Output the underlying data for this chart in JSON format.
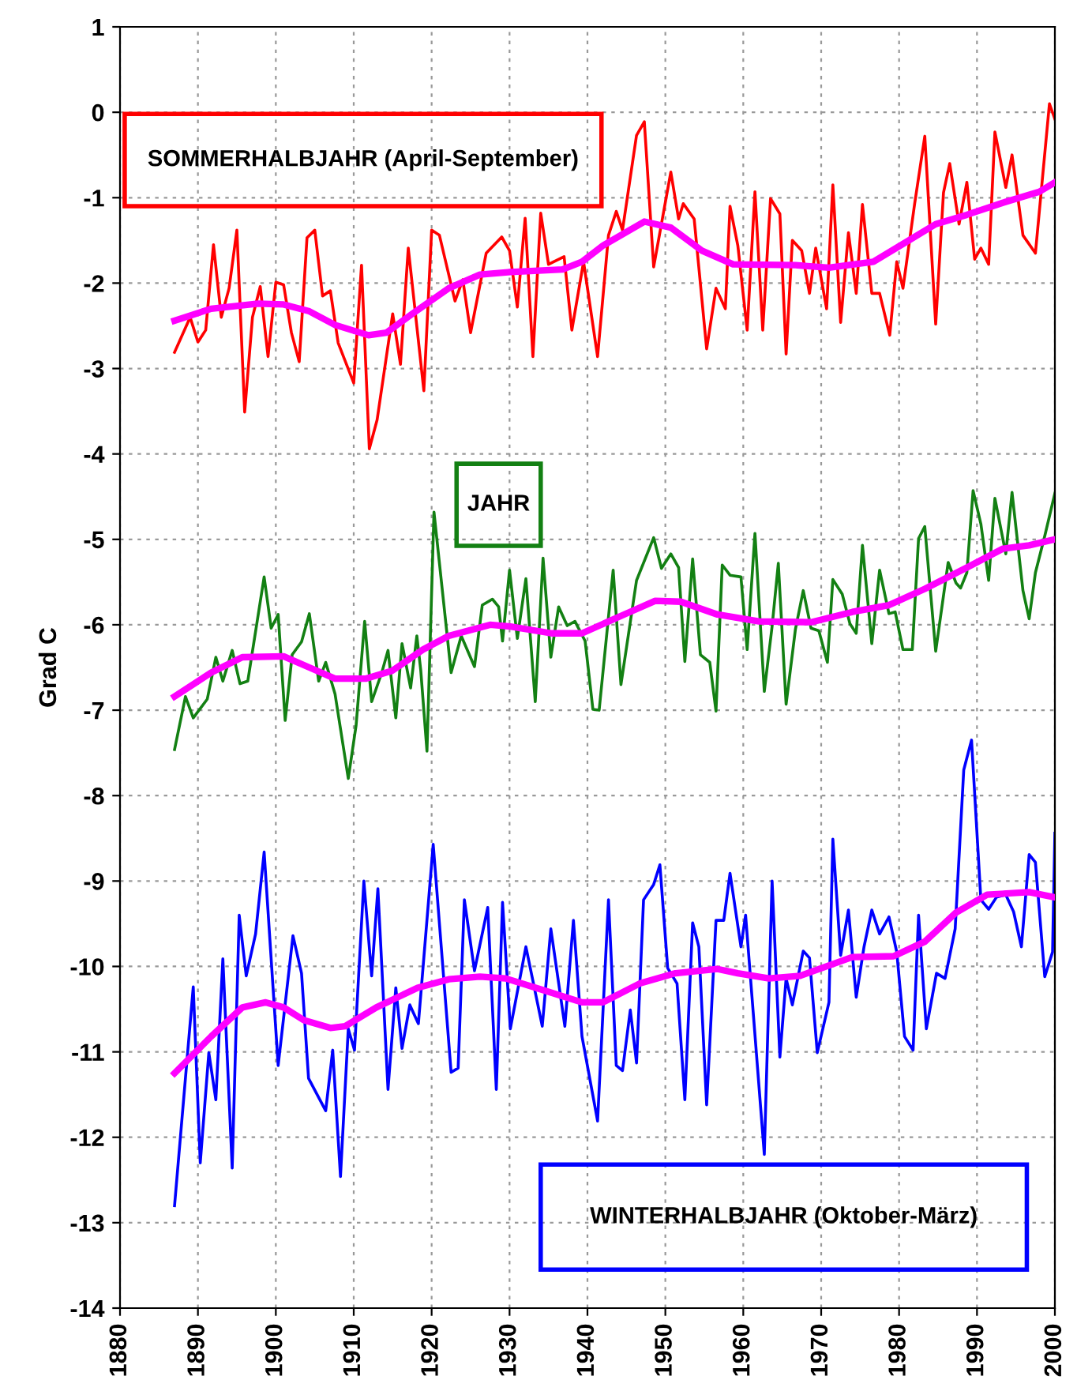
{
  "chart_data": {
    "type": "line",
    "ylabel": "Grad C",
    "xlim": [
      1880,
      2000
    ],
    "ylim": [
      -14,
      1
    ],
    "xticks": [
      1880,
      1890,
      1900,
      1910,
      1920,
      1930,
      1940,
      1950,
      1960,
      1970,
      1980,
      1990,
      2000
    ],
    "yticks": [
      -14,
      -13,
      -12,
      -11,
      -10,
      -9,
      -8,
      -7,
      -6,
      -5,
      -4,
      -3,
      -2,
      -1,
      0,
      1
    ],
    "grid": true,
    "line_style": "solid",
    "marker": "none",
    "series": [
      {
        "name": "SOMMERHALBJAHR (April-September)",
        "color": "#ff0000",
        "x": [
          1887,
          1889,
          1890,
          1891,
          1892,
          1893,
          1894,
          1895,
          1896,
          1897,
          1898,
          1899,
          1900,
          1901,
          1902,
          1903,
          1904,
          1905,
          1906,
          1907,
          1908,
          1910,
          1911,
          1912,
          1913,
          1915,
          1916,
          1917,
          1919,
          1920,
          1921,
          1923,
          1924,
          1925,
          1927,
          1929,
          1930,
          1931,
          1932,
          1933,
          1934,
          1935,
          1937,
          1938,
          1939.5,
          1941.3,
          1942.7,
          1943.7,
          1944.5,
          1946.3,
          1947.3,
          1948.5,
          1950.7,
          1951.7,
          1952.3,
          1953.7,
          1955.3,
          1956.5,
          1957.7,
          1958.3,
          1959.3,
          1960.5,
          1961.5,
          1962.5,
          1963.5,
          1964.7,
          1965.5,
          1966.3,
          1967.5,
          1968.5,
          1969.3,
          1970.7,
          1971.5,
          1972.5,
          1973.5,
          1974.5,
          1975.3,
          1976.5,
          1977.5,
          1978.8,
          1979.7,
          1980.5,
          1982,
          1983.3,
          1984.7,
          1985.7,
          1986.5,
          1987.7,
          1988.7,
          1989.7,
          1990.5,
          1991.5,
          1992.3,
          1993.7,
          1994.5,
          1995.9,
          1997.5,
          1999.3,
          2000
        ],
        "values": [
          -2.81,
          -2.4,
          -2.69,
          -2.55,
          -1.55,
          -2.4,
          -2.06,
          -1.38,
          -3.51,
          -2.4,
          -2.04,
          -2.86,
          -1.99,
          -2.02,
          -2.58,
          -2.92,
          -1.47,
          -1.38,
          -2.15,
          -2.09,
          -2.7,
          -3.17,
          -1.79,
          -3.94,
          -3.6,
          -2.36,
          -2.95,
          -1.59,
          -3.26,
          -1.38,
          -1.44,
          -2.21,
          -1.96,
          -2.58,
          -1.65,
          -1.46,
          -1.62,
          -2.28,
          -1.24,
          -2.86,
          -1.18,
          -1.78,
          -1.69,
          -2.55,
          -1.75,
          -2.86,
          -1.44,
          -1.16,
          -1.38,
          -0.27,
          -0.11,
          -1.81,
          -0.7,
          -1.25,
          -1.07,
          -1.25,
          -2.77,
          -2.06,
          -2.3,
          -1.1,
          -1.56,
          -2.55,
          -0.93,
          -2.55,
          -1.01,
          -1.19,
          -2.83,
          -1.5,
          -1.62,
          -2.12,
          -1.59,
          -2.3,
          -0.85,
          -2.46,
          -1.41,
          -2.12,
          -1.08,
          -2.12,
          -2.12,
          -2.61,
          -1.75,
          -2.06,
          -1.07,
          -0.28,
          -2.48,
          -0.94,
          -0.6,
          -1.31,
          -0.82,
          -1.72,
          -1.59,
          -1.78,
          -0.23,
          -0.88,
          -0.5,
          -1.44,
          -1.65,
          0.1,
          -0.08
        ]
      },
      {
        "color": "#ff00ff",
        "x": [
          1887,
          1891.7,
          1897.7,
          1901,
          1904.3,
          1907.6,
          1911.9,
          1914.2,
          1917.5,
          1922.2,
          1926.2,
          1930.1,
          1936.8,
          1939.3,
          1942,
          1947.3,
          1950.7,
          1954.7,
          1958.7,
          1966.7,
          1971,
          1976.7,
          1980.7,
          1984.7,
          1988.7,
          1993.3,
          1998,
          2000
        ],
        "values": [
          -2.44,
          -2.3,
          -2.24,
          -2.25,
          -2.33,
          -2.49,
          -2.61,
          -2.58,
          -2.36,
          -2.06,
          -1.9,
          -1.87,
          -1.84,
          -1.75,
          -1.56,
          -1.28,
          -1.35,
          -1.62,
          -1.78,
          -1.79,
          -1.82,
          -1.75,
          -1.53,
          -1.31,
          -1.2,
          -1.06,
          -0.93,
          -0.82
        ]
      },
      {
        "name": "JAHR",
        "color": "#138013",
        "x": [
          1887,
          1888.4,
          1889.4,
          1891.2,
          1892.3,
          1893.2,
          1894.4,
          1895.4,
          1896.4,
          1898.5,
          1899.4,
          1900.3,
          1901.2,
          1902.1,
          1903.3,
          1904.3,
          1905.5,
          1906.4,
          1907.6,
          1909.3,
          1910.3,
          1911.4,
          1912.3,
          1913.6,
          1914.4,
          1915.4,
          1916.2,
          1917.3,
          1918.1,
          1918.6,
          1919.4,
          1920.3,
          1922.5,
          1923.8,
          1925.5,
          1926.5,
          1927.8,
          1928.6,
          1929.1,
          1930,
          1931,
          1932.1,
          1933.3,
          1934.3,
          1935.3,
          1936.3,
          1937.4,
          1938.4,
          1939.7,
          1940.7,
          1941.5,
          1943.3,
          1944.3,
          1946.3,
          1948.5,
          1949.5,
          1950.7,
          1951.7,
          1952.5,
          1953.5,
          1954.5,
          1955.7,
          1956.5,
          1957.3,
          1958.3,
          1959.7,
          1960.5,
          1961.5,
          1962.7,
          1963.7,
          1964.5,
          1965.5,
          1966.7,
          1967.7,
          1968.7,
          1969.7,
          1970.8,
          1971.5,
          1972.7,
          1973.7,
          1974.5,
          1975.3,
          1976.5,
          1977.5,
          1978.7,
          1979.5,
          1980.5,
          1981.7,
          1982.5,
          1983.3,
          1984.7,
          1986.3,
          1987.3,
          1987.9,
          1988.7,
          1989.5,
          1990.5,
          1991.5,
          1992.3,
          1993.7,
          1994.5,
          1995.9,
          1996.7,
          1997.5,
          1998.7,
          2000
        ],
        "values": [
          -7.46,
          -6.84,
          -7.09,
          -6.87,
          -6.38,
          -6.66,
          -6.3,
          -6.69,
          -6.66,
          -5.44,
          -6.04,
          -5.88,
          -7.12,
          -6.35,
          -6.2,
          -5.87,
          -6.66,
          -6.44,
          -6.81,
          -7.8,
          -7.18,
          -5.96,
          -6.9,
          -6.56,
          -6.3,
          -7.09,
          -6.22,
          -6.74,
          -6.13,
          -6.53,
          -7.48,
          -4.68,
          -6.56,
          -6.13,
          -6.49,
          -5.77,
          -5.7,
          -5.79,
          -6.19,
          -5.36,
          -6.16,
          -5.46,
          -6.9,
          -5.22,
          -6.38,
          -5.79,
          -6.01,
          -5.96,
          -6.19,
          -6.99,
          -7.0,
          -5.36,
          -6.7,
          -5.48,
          -4.98,
          -5.34,
          -5.17,
          -5.33,
          -6.43,
          -5.23,
          -6.35,
          -6.44,
          -7.01,
          -5.3,
          -5.42,
          -5.44,
          -6.29,
          -4.93,
          -6.78,
          -6.02,
          -5.28,
          -6.93,
          -6.05,
          -5.6,
          -6.04,
          -6.07,
          -6.44,
          -5.47,
          -5.64,
          -5.99,
          -6.1,
          -5.07,
          -6.22,
          -5.36,
          -5.87,
          -5.85,
          -6.29,
          -6.29,
          -4.99,
          -4.85,
          -6.31,
          -5.27,
          -5.51,
          -5.57,
          -5.39,
          -4.43,
          -4.82,
          -5.48,
          -4.52,
          -5.17,
          -4.45,
          -5.6,
          -5.93,
          -5.39,
          -4.96,
          -4.46
        ]
      },
      {
        "color": "#ff00ff",
        "x": [
          1887,
          1891.7,
          1895.7,
          1901,
          1904.3,
          1907.6,
          1911.6,
          1914.9,
          1918.9,
          1922.2,
          1927.5,
          1930.1,
          1935.4,
          1939.3,
          1944.7,
          1948.7,
          1952,
          1956.7,
          1962,
          1968.7,
          1974,
          1978.7,
          1983.3,
          1988.7,
          1993.3,
          1996.7,
          2000
        ],
        "values": [
          -6.84,
          -6.56,
          -6.38,
          -6.37,
          -6.5,
          -6.63,
          -6.63,
          -6.54,
          -6.29,
          -6.13,
          -6.0,
          -6.02,
          -6.1,
          -6.1,
          -5.88,
          -5.72,
          -5.73,
          -5.88,
          -5.96,
          -5.97,
          -5.85,
          -5.77,
          -5.58,
          -5.33,
          -5.11,
          -5.07,
          -5.0
        ]
      },
      {
        "name": "WINTERHALBJAHR (Oktober-März)",
        "color": "#0000ff",
        "x": [
          1887,
          1889.4,
          1890.3,
          1891.4,
          1892.3,
          1893.2,
          1894.4,
          1895.3,
          1896.2,
          1897.4,
          1898.5,
          1900.3,
          1902.2,
          1903.3,
          1904.2,
          1906.4,
          1907.3,
          1908.3,
          1909.3,
          1910.1,
          1911.3,
          1912.3,
          1913.1,
          1914.4,
          1915.4,
          1916.2,
          1917.2,
          1918.3,
          1920.2,
          1922.5,
          1923.4,
          1924.2,
          1925.5,
          1927.2,
          1928.3,
          1929.1,
          1930.1,
          1932.1,
          1934.2,
          1935.3,
          1937.1,
          1938.2,
          1939.3,
          1941.3,
          1942.7,
          1943.7,
          1944.5,
          1945.5,
          1946.3,
          1947.2,
          1948.5,
          1949.3,
          1950.3,
          1951.5,
          1952.5,
          1953.5,
          1954.3,
          1955.3,
          1956.5,
          1957.5,
          1958.3,
          1959.7,
          1960.3,
          1962.7,
          1963.7,
          1964.7,
          1965.5,
          1966.3,
          1967.7,
          1968.5,
          1969.5,
          1971,
          1971.5,
          1972.5,
          1973.5,
          1974.5,
          1975.5,
          1976.5,
          1977.5,
          1978.7,
          1979.7,
          1980.7,
          1981.8,
          1982.5,
          1983.5,
          1984.8,
          1985.9,
          1987.2,
          1988.3,
          1989.3,
          1990.5,
          1991.5,
          1992.5,
          1993.7,
          1994.7,
          1995.7,
          1996.7,
          1997.5,
          1998.7,
          1999.7,
          2000
        ],
        "values": [
          -12.8,
          -10.24,
          -12.3,
          -11.01,
          -11.56,
          -9.91,
          -12.36,
          -9.4,
          -10.11,
          -9.62,
          -8.66,
          -11.16,
          -9.64,
          -10.08,
          -11.31,
          -11.69,
          -10.98,
          -12.46,
          -10.73,
          -10.98,
          -9.0,
          -10.11,
          -9.09,
          -11.44,
          -10.25,
          -10.96,
          -10.45,
          -10.67,
          -8.57,
          -11.24,
          -11.19,
          -9.22,
          -10.05,
          -9.31,
          -11.44,
          -9.25,
          -10.73,
          -9.77,
          -10.7,
          -9.56,
          -10.7,
          -9.46,
          -10.82,
          -11.81,
          -9.22,
          -11.16,
          -11.22,
          -10.51,
          -11.13,
          -9.22,
          -9.04,
          -8.81,
          -10.02,
          -10.2,
          -11.56,
          -9.49,
          -9.77,
          -11.62,
          -9.46,
          -9.46,
          -8.91,
          -9.77,
          -9.4,
          -12.2,
          -9.0,
          -11.06,
          -10.14,
          -10.45,
          -9.82,
          -9.9,
          -11.01,
          -10.42,
          -8.51,
          -9.87,
          -9.34,
          -10.36,
          -9.77,
          -9.34,
          -9.62,
          -9.42,
          -9.83,
          -10.82,
          -10.98,
          -9.4,
          -10.73,
          -10.08,
          -10.14,
          -9.56,
          -7.7,
          -7.35,
          -9.22,
          -9.33,
          -9.19,
          -9.16,
          -9.36,
          -9.77,
          -8.69,
          -8.78,
          -10.12,
          -9.83,
          -8.44
        ]
      },
      {
        "color": "#ff00ff",
        "x": [
          1887,
          1891.7,
          1895.7,
          1898.7,
          1901,
          1903.6,
          1907,
          1908.9,
          1912.9,
          1918.2,
          1922.2,
          1926.2,
          1929.5,
          1934.1,
          1939.3,
          1942,
          1946.7,
          1951.3,
          1956.7,
          1959.3,
          1963.3,
          1967.3,
          1974,
          1979.3,
          1983.3,
          1987.3,
          1991.3,
          1996.7,
          2000
        ],
        "values": [
          -11.25,
          -10.82,
          -10.48,
          -10.42,
          -10.48,
          -10.63,
          -10.72,
          -10.7,
          -10.48,
          -10.25,
          -10.15,
          -10.12,
          -10.14,
          -10.27,
          -10.42,
          -10.42,
          -10.2,
          -10.08,
          -10.03,
          -10.08,
          -10.14,
          -10.11,
          -9.89,
          -9.88,
          -9.71,
          -9.37,
          -9.16,
          -9.13,
          -9.19
        ]
      }
    ]
  }
}
